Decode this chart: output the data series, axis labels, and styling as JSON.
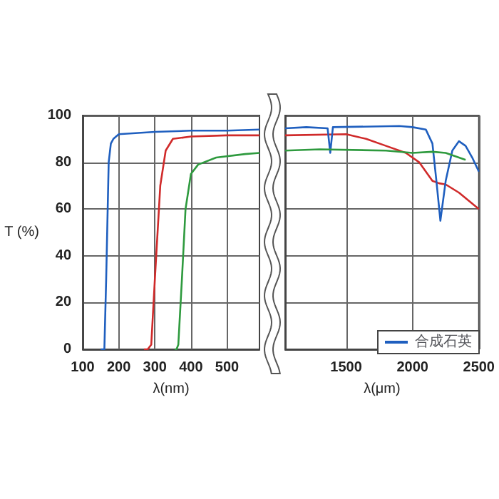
{
  "chart_data": [
    {
      "type": "line",
      "ylabel": "T (%)",
      "xlabel": "λ(nm)",
      "xlim": [
        100,
        590
      ],
      "xticks": [
        100,
        200,
        300,
        400,
        500
      ],
      "ylim": [
        0,
        100
      ],
      "yticks": [
        0,
        20,
        40,
        60,
        80,
        100
      ],
      "grid": true,
      "legend": false,
      "series": [
        {
          "color": "#d02a2a",
          "x": [
            270,
            280,
            290,
            300,
            315,
            330,
            350,
            400,
            500,
            590
          ],
          "values": [
            0,
            0,
            2,
            30,
            70,
            85,
            90,
            91,
            91.5,
            91.5
          ]
        },
        {
          "color": "#1f5fbf",
          "x": [
            150,
            160,
            165,
            172,
            178,
            185,
            200,
            300,
            400,
            500,
            590
          ],
          "values": [
            0,
            0,
            30,
            80,
            88,
            90,
            92,
            93,
            93.5,
            93.5,
            94
          ]
        },
        {
          "color": "#2e9a3e",
          "x": [
            355,
            360,
            365,
            375,
            385,
            400,
            420,
            470,
            550,
            590
          ],
          "values": [
            0,
            0,
            2,
            30,
            60,
            75,
            79,
            82,
            83.5,
            84
          ]
        }
      ]
    },
    {
      "type": "line",
      "xlabel": "λ(μm)",
      "xlim": [
        1040,
        2500
      ],
      "xticks": [
        1500,
        2000,
        2500
      ],
      "ylim": [
        0,
        100
      ],
      "yticks": [
        0,
        20,
        40,
        60,
        80,
        100
      ],
      "grid": true,
      "legend": "bottom right",
      "tick_labels": "x",
      "series": [
        {
          "color": "#d02a2a",
          "x": [
            1040,
            1500,
            1650,
            1800,
            1950,
            2050,
            2150,
            2200,
            2250,
            2350,
            2500
          ],
          "values": [
            91.5,
            92,
            90,
            87,
            84,
            80,
            72,
            71,
            70.5,
            67,
            60
          ]
        },
        {
          "name": "合成石英",
          "color": "#1f5fbf",
          "x": [
            1040,
            1200,
            1360,
            1380,
            1400,
            1900,
            2000,
            2100,
            2150,
            2180,
            2210,
            2250,
            2300,
            2350,
            2400,
            2450,
            2500
          ],
          "values": [
            94.5,
            95,
            94.5,
            84,
            95,
            95.5,
            95,
            94,
            88,
            72,
            55,
            72,
            85,
            89,
            87,
            82,
            76
          ]
        },
        {
          "color": "#2e9a3e",
          "x": [
            1040,
            1300,
            1800,
            2000,
            2150,
            2250,
            2400
          ],
          "values": [
            85,
            85.5,
            85,
            84,
            84.5,
            84,
            81
          ]
        }
      ]
    }
  ]
}
